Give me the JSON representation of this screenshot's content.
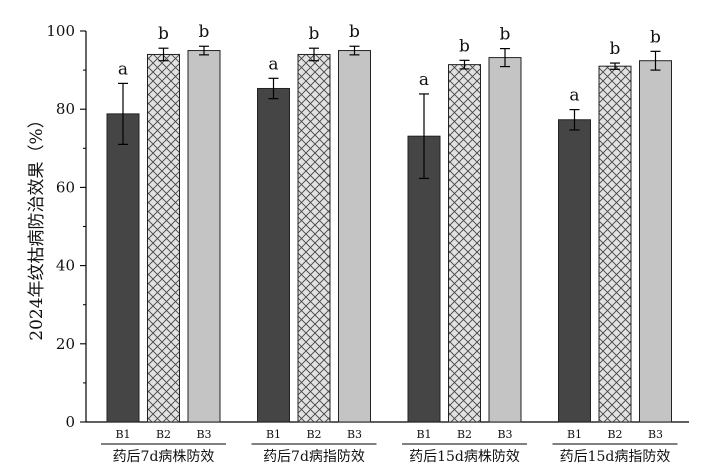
{
  "chart_data": {
    "type": "bar",
    "ylabel": "2024年纹枯病防治效果（%）",
    "ylim": [
      0,
      100
    ],
    "yticks": [
      0,
      20,
      40,
      60,
      80,
      100
    ],
    "grid": false,
    "legend": "none",
    "bar_names": [
      "B1",
      "B2",
      "B3"
    ],
    "styles": [
      {
        "fill": "#454545",
        "pattern": "solid"
      },
      {
        "fill": "#e2e2e2",
        "pattern": "crosshatch"
      },
      {
        "fill": "#c4c4c4",
        "pattern": "solid"
      }
    ],
    "groups": [
      {
        "label": "药后7d病株防效",
        "bars": [
          {
            "name": "B1",
            "value": 78.8,
            "error": 7.8,
            "sig": "a"
          },
          {
            "name": "B2",
            "value": 94.0,
            "error": 1.6,
            "sig": "b"
          },
          {
            "name": "B3",
            "value": 95.0,
            "error": 1.1,
            "sig": "b"
          }
        ]
      },
      {
        "label": "药后7d病指防效",
        "bars": [
          {
            "name": "B1",
            "value": 85.3,
            "error": 2.6,
            "sig": "a"
          },
          {
            "name": "B2",
            "value": 94.0,
            "error": 1.6,
            "sig": "b"
          },
          {
            "name": "B3",
            "value": 95.0,
            "error": 1.1,
            "sig": "b"
          }
        ]
      },
      {
        "label": "药后15d病株防效",
        "bars": [
          {
            "name": "B1",
            "value": 73.1,
            "error": 10.8,
            "sig": "a"
          },
          {
            "name": "B2",
            "value": 91.4,
            "error": 1.1,
            "sig": "b"
          },
          {
            "name": "B3",
            "value": 93.2,
            "error": 2.3,
            "sig": "b"
          }
        ]
      },
      {
        "label": "药后15d病指防效",
        "bars": [
          {
            "name": "B1",
            "value": 77.3,
            "error": 2.6,
            "sig": "a"
          },
          {
            "name": "B2",
            "value": 91.0,
            "error": 0.8,
            "sig": "b"
          },
          {
            "name": "B3",
            "value": 92.4,
            "error": 2.4,
            "sig": "b"
          }
        ]
      }
    ]
  }
}
